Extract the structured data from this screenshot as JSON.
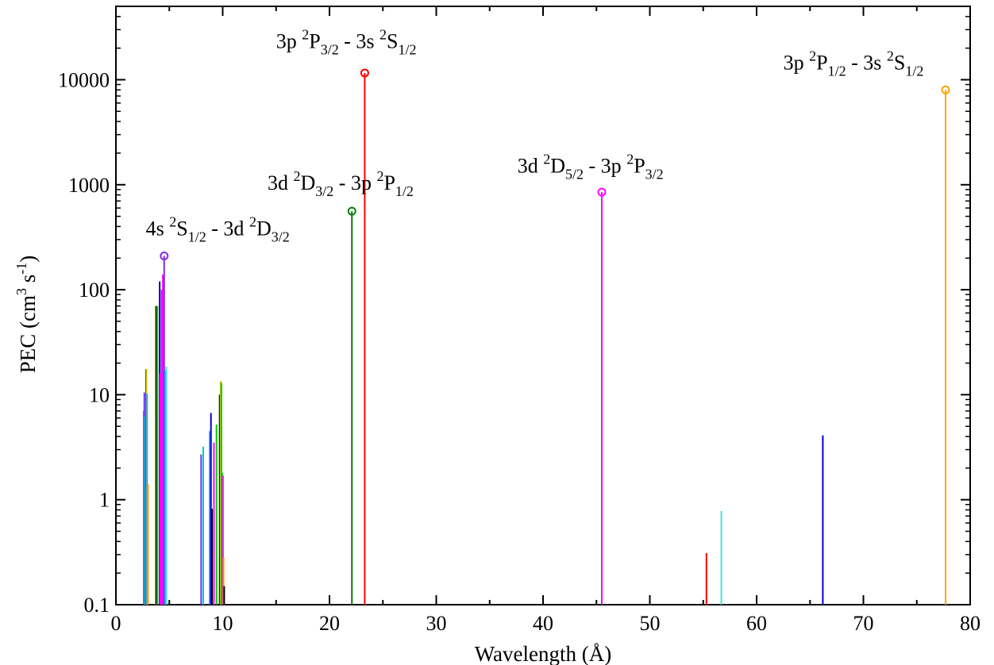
{
  "chart_data": {
    "type": "stem",
    "xlabel": "Wavelength (Å)",
    "ylabel": "PEC (cm3 s-1)",
    "ylabel_parts": {
      "main": "PEC (cm",
      "sup1": "3",
      "mid": " s",
      "sup2": "-1",
      "end": ")"
    },
    "x_scale": "linear",
    "y_scale": "log",
    "xlim": [
      0,
      80
    ],
    "ylim": [
      0.1,
      50000
    ],
    "x_ticks": [
      0,
      10,
      20,
      30,
      40,
      50,
      60,
      70,
      80
    ],
    "x_tick_labels": [
      "0",
      "10",
      "20",
      "30",
      "40",
      "50",
      "60",
      "70",
      "80"
    ],
    "y_ticks": [
      0.1,
      1,
      10,
      100,
      1000,
      10000
    ],
    "y_tick_labels": [
      "0.1",
      "1",
      "10",
      "100",
      "1000",
      "10000"
    ],
    "grid": false,
    "lines": [
      {
        "x": 2.62,
        "y": 7.0,
        "color": "#ff0000"
      },
      {
        "x": 2.66,
        "y": 10.5,
        "color": "#7030ff"
      },
      {
        "x": 2.72,
        "y": 6.2,
        "color": "#00cccc"
      },
      {
        "x": 2.82,
        "y": 17.5,
        "color": "#000000"
      },
      {
        "x": 2.86,
        "y": 17.5,
        "color": "#cccc00"
      },
      {
        "x": 2.92,
        "y": 10.2,
        "color": "#30a0ff"
      },
      {
        "x": 3.0,
        "y": 1.4,
        "color": "#ff9900"
      },
      {
        "x": 3.72,
        "y": 70,
        "color": "#cc9900"
      },
      {
        "x": 3.8,
        "y": 70,
        "color": "#000000"
      },
      {
        "x": 3.88,
        "y": 70,
        "color": "#00cc00"
      },
      {
        "x": 4.1,
        "y": 120,
        "color": "#0000cc"
      },
      {
        "x": 4.16,
        "y": 16.0,
        "color": "#ff00ff"
      },
      {
        "x": 4.28,
        "y": 100,
        "color": "#ff00ff"
      },
      {
        "x": 4.4,
        "y": 140,
        "color": "#ff00ff"
      },
      {
        "x": 4.52,
        "y": 210,
        "color": "#8a2be2",
        "marker": true
      },
      {
        "x": 4.62,
        "y": 17.0,
        "color": "#00aaff"
      },
      {
        "x": 4.72,
        "y": 18.5,
        "color": "#40e0d0"
      },
      {
        "x": 7.98,
        "y": 2.7,
        "color": "#7030ff"
      },
      {
        "x": 8.18,
        "y": 3.2,
        "color": "#00cccc"
      },
      {
        "x": 8.78,
        "y": 4.5,
        "color": "#30a0ff"
      },
      {
        "x": 8.9,
        "y": 6.7,
        "color": "#0000cc"
      },
      {
        "x": 9.0,
        "y": 0.82,
        "color": "#000000"
      },
      {
        "x": 9.18,
        "y": 3.5,
        "color": "#ff00ff"
      },
      {
        "x": 9.42,
        "y": 5.2,
        "color": "#00cc00"
      },
      {
        "x": 9.72,
        "y": 10.0,
        "color": "#000000"
      },
      {
        "x": 9.8,
        "y": 13.5,
        "color": "#cccc00"
      },
      {
        "x": 9.88,
        "y": 13.0,
        "color": "#00cc00"
      },
      {
        "x": 9.96,
        "y": 1.8,
        "color": "#00cc00"
      },
      {
        "x": 10.02,
        "y": 1.7,
        "color": "#ff00ff"
      },
      {
        "x": 10.08,
        "y": 0.28,
        "color": "#ff9900"
      },
      {
        "x": 10.14,
        "y": 0.15,
        "color": "#000000"
      },
      {
        "x": 22.1,
        "y": 560,
        "color": "#008000",
        "marker": true
      },
      {
        "x": 23.3,
        "y": 11600,
        "color": "#ff0000",
        "marker": true
      },
      {
        "x": 45.5,
        "y": 850,
        "color": "#ff00ff",
        "marker": true
      },
      {
        "x": 55.3,
        "y": 0.31,
        "color": "#ff0000"
      },
      {
        "x": 56.7,
        "y": 0.78,
        "color": "#40e0d0"
      },
      {
        "x": 66.2,
        "y": 4.1,
        "color": "#0000cc"
      },
      {
        "x": 77.7,
        "y": 8000,
        "color": "#ffa500",
        "marker": true
      }
    ],
    "annotations": [
      {
        "parts": [
          [
            "3p ",
            ""
          ],
          [
            "2",
            "sup"
          ],
          [
            "P",
            ""
          ],
          [
            "3/2",
            "sub"
          ],
          [
            " - 3s ",
            ""
          ],
          [
            "2",
            "sup"
          ],
          [
            "S",
            ""
          ],
          [
            "1/2",
            "sub"
          ]
        ],
        "anchor_x": 15.0,
        "anchor_y": 20000
      },
      {
        "parts": [
          [
            "3d ",
            ""
          ],
          [
            "2",
            "sup"
          ],
          [
            "D",
            ""
          ],
          [
            "3/2",
            "sub"
          ],
          [
            " - 3p ",
            ""
          ],
          [
            "2",
            "sup"
          ],
          [
            "P",
            ""
          ],
          [
            "1/2",
            "sub"
          ]
        ],
        "anchor_x": 14.2,
        "anchor_y": 900
      },
      {
        "parts": [
          [
            "4s ",
            ""
          ],
          [
            "2",
            "sup"
          ],
          [
            "S",
            ""
          ],
          [
            "1/2",
            "sub"
          ],
          [
            " - 3d ",
            ""
          ],
          [
            "2",
            "sup"
          ],
          [
            "D",
            ""
          ],
          [
            "3/2",
            "sub"
          ]
        ],
        "anchor_x": 2.8,
        "anchor_y": 330
      },
      {
        "parts": [
          [
            "3d ",
            ""
          ],
          [
            "2",
            "sup"
          ],
          [
            "D",
            ""
          ],
          [
            "5/2",
            "sub"
          ],
          [
            " - 3p ",
            ""
          ],
          [
            "2",
            "sup"
          ],
          [
            "P",
            ""
          ],
          [
            "3/2",
            "sub"
          ]
        ],
        "anchor_x": 37.6,
        "anchor_y": 1300
      },
      {
        "parts": [
          [
            "3p ",
            ""
          ],
          [
            "2",
            "sup"
          ],
          [
            "P",
            ""
          ],
          [
            "1/2",
            "sub"
          ],
          [
            " - 3s ",
            ""
          ],
          [
            "2",
            "sup"
          ],
          [
            "S",
            ""
          ],
          [
            "1/2",
            "sub"
          ]
        ],
        "anchor_x": 62.5,
        "anchor_y": 12500
      }
    ]
  }
}
